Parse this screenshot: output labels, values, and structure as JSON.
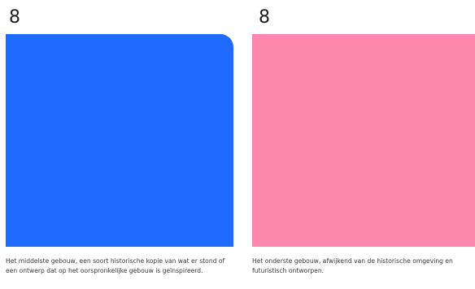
{
  "cards": [
    {
      "number": "8",
      "color": "#1f6bff",
      "caption": "Het middelste gebouw, een soort historische kopie van wat er stond of een ontwerp dat op het oorspronkelijke gebouw is geïnspireerd."
    },
    {
      "number": "8",
      "color": "#ff86ad",
      "caption": "Het onderste gebouw, afwijkend van de historische omgeving en futuristisch ontworpen."
    }
  ]
}
